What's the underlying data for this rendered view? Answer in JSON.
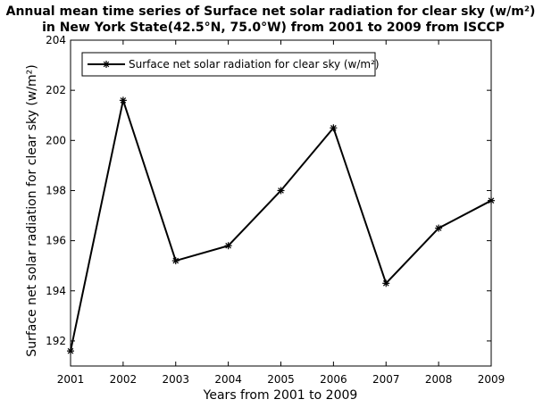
{
  "chart_data": {
    "type": "line",
    "title_lines": [
      "Annual mean time series of Surface net solar radiation for clear sky (w/m²)",
      "in New York State(42.5°N, 75.0°W) from 2001 to 2009 from ISCCP"
    ],
    "xlabel": "Years from 2001 to 2009",
    "ylabel": "Surface net solar radiation for clear sky (w/m²)",
    "xlim": [
      2001,
      2009
    ],
    "ylim": [
      191,
      204
    ],
    "x_ticks": [
      "2001",
      "2002",
      "2003",
      "2004",
      "2005",
      "2006",
      "2007",
      "2008",
      "2009"
    ],
    "y_ticks": [
      "192",
      "194",
      "196",
      "198",
      "200",
      "202",
      "204"
    ],
    "grid": false,
    "legend_position": "top-left",
    "series": [
      {
        "name": "Surface net solar radiation for clear sky (w/m²)",
        "marker": "asterisk",
        "color": "#000000",
        "x": [
          2001,
          2002,
          2003,
          2004,
          2005,
          2006,
          2007,
          2008,
          2009
        ],
        "y": [
          191.6,
          201.6,
          195.2,
          195.8,
          198.0,
          200.5,
          194.3,
          196.5,
          197.6
        ]
      }
    ]
  }
}
